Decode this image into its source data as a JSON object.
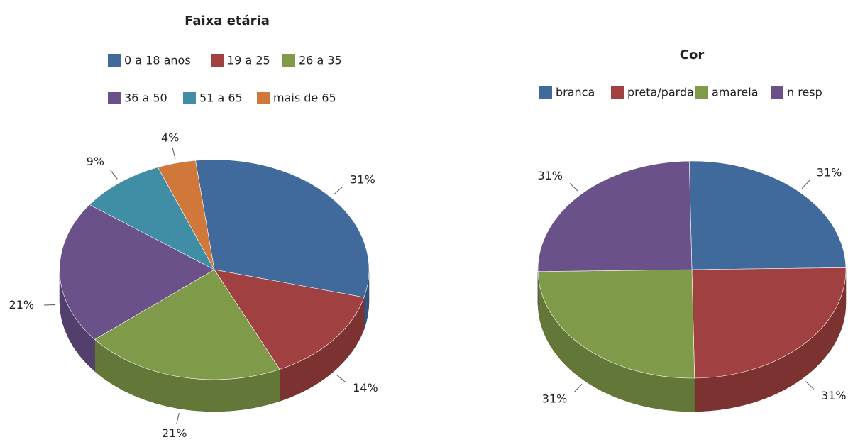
{
  "chart_data": [
    {
      "type": "pie",
      "title": "Faixa etária",
      "categories": [
        "0 a 18 anos",
        "19 a 25",
        "26 a 35",
        "36 a 50",
        "51 a 65",
        "mais de 65"
      ],
      "values": [
        31,
        14,
        21,
        21,
        9,
        4
      ],
      "value_labels": [
        "31%",
        "14%",
        "21%",
        "21%",
        "9%",
        "4%"
      ],
      "colors": [
        "#416a9c",
        "#a04040",
        "#7f9a48",
        "#6a518a",
        "#3f8ea5",
        "#d0783a"
      ]
    },
    {
      "type": "pie",
      "title": "Cor",
      "categories": [
        "branca",
        "preta/parda",
        "amarela",
        "n resp"
      ],
      "values": [
        31,
        31,
        31,
        31
      ],
      "value_labels": [
        "31%",
        "31%",
        "31%",
        "31%"
      ],
      "colors": [
        "#416a9c",
        "#a04040",
        "#7f9a48",
        "#6a518a"
      ]
    }
  ]
}
